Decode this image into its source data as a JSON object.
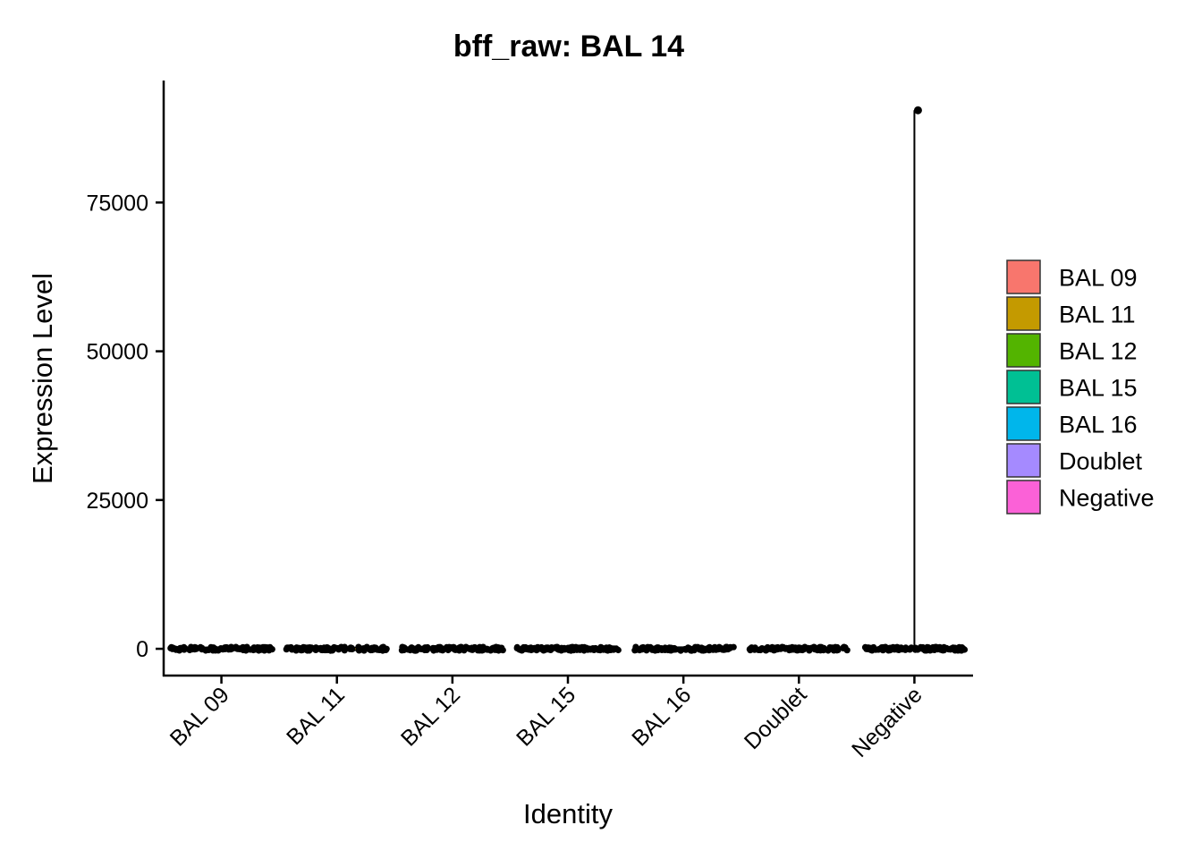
{
  "chart_data": {
    "type": "violin",
    "title": "bff_raw: BAL 14",
    "xlabel": "Identity",
    "ylabel": "Expression Level",
    "categories": [
      "BAL 09",
      "BAL 11",
      "BAL 12",
      "BAL 15",
      "BAL 16",
      "Doublet",
      "Negative"
    ],
    "colors": [
      "#F8766D",
      "#C49A00",
      "#53B400",
      "#00C094",
      "#00B6EB",
      "#A58AFF",
      "#FB61D7"
    ],
    "yticks": [
      0,
      25000,
      50000,
      75000
    ],
    "ylim": [
      -4500,
      95500
    ],
    "max_values": [
      60,
      40,
      350,
      300,
      60,
      700,
      90500
    ],
    "outlier_points": [
      {
        "category": "Negative",
        "value": 90500
      }
    ],
    "grid": false,
    "legend": {
      "position": "right",
      "entries": [
        "BAL 09",
        "BAL 11",
        "BAL 12",
        "BAL 15",
        "BAL 16",
        "Doublet",
        "Negative"
      ]
    }
  }
}
